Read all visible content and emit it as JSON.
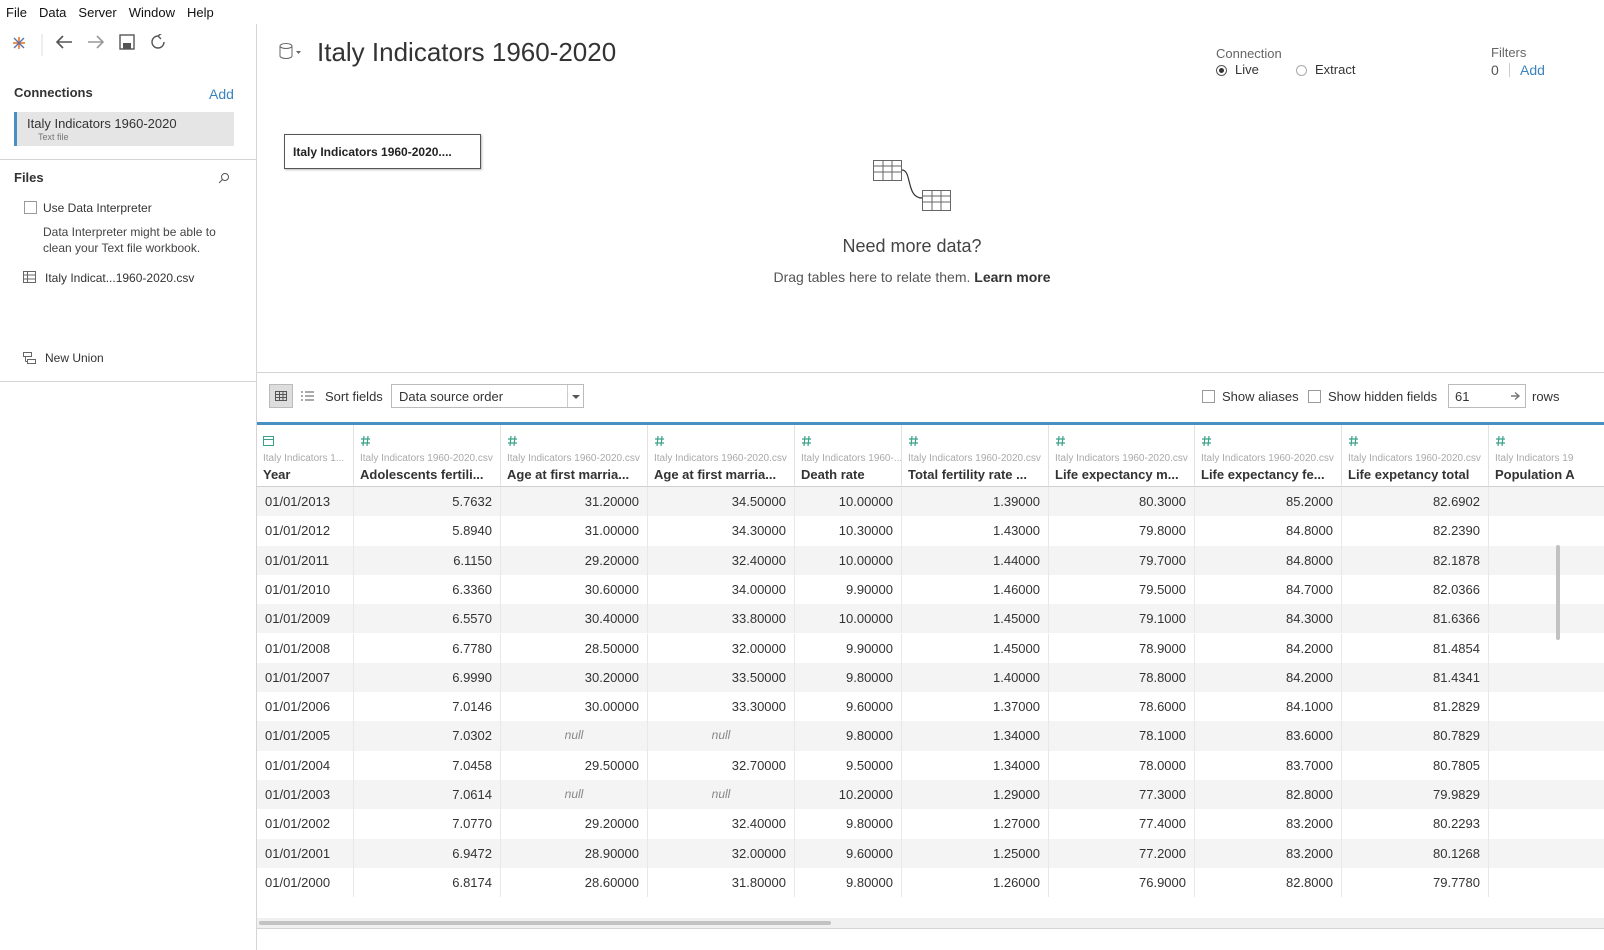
{
  "menu": [
    "File",
    "Data",
    "Server",
    "Window",
    "Help"
  ],
  "connections": {
    "title": "Connections",
    "add": "Add",
    "items": [
      {
        "name": "Italy Indicators 1960-2020",
        "type": "Text file"
      }
    ]
  },
  "files": {
    "title": "Files",
    "interpreter_label": "Use Data Interpreter",
    "interpreter_note": "Data Interpreter might be able to clean your Text file workbook.",
    "tables": [
      "Italy Indicat...1960-2020.csv"
    ],
    "new_union": "New Union"
  },
  "header": {
    "title": "Italy Indicators 1960-2020",
    "connection_label": "Connection",
    "live": "Live",
    "extract": "Extract",
    "filters_label": "Filters",
    "filters_count": "0",
    "filters_add": "Add"
  },
  "canvas": {
    "table": "Italy Indicators 1960-2020....",
    "prompt": "Need more data?",
    "hint": "Drag tables here to relate them.",
    "link": "Learn more"
  },
  "grid_toolbar": {
    "sort_label": "Sort fields",
    "sort_value": "Data source order",
    "show_aliases": "Show aliases",
    "show_hidden": "Show hidden fields",
    "rows_value": "61",
    "rows_label": "rows"
  },
  "table": {
    "columns": [
      {
        "kind": "date",
        "source": "Italy Indicators 1...",
        "name": "Year"
      },
      {
        "kind": "number",
        "source": "Italy Indicators 1960-2020.csv",
        "name": "Adolescents fertili..."
      },
      {
        "kind": "number",
        "source": "Italy Indicators 1960-2020.csv",
        "name": "Age at first marria..."
      },
      {
        "kind": "number",
        "source": "Italy Indicators 1960-2020.csv",
        "name": "Age at first marria..."
      },
      {
        "kind": "number",
        "source": "Italy Indicators 1960-...",
        "name": "Death rate"
      },
      {
        "kind": "number",
        "source": "Italy Indicators 1960-2020.csv",
        "name": "Total fertility rate ..."
      },
      {
        "kind": "number",
        "source": "Italy Indicators 1960-2020.csv",
        "name": "Life expectancy m..."
      },
      {
        "kind": "number",
        "source": "Italy Indicators 1960-2020.csv",
        "name": "Life expectancy fe..."
      },
      {
        "kind": "number",
        "source": "Italy Indicators 1960-2020.csv",
        "name": "Life expetancy total"
      },
      {
        "kind": "number",
        "source": "Italy Indicators 19",
        "name": "Population A"
      }
    ],
    "rows": [
      [
        "01/01/2013",
        "5.7632",
        "31.20000",
        "34.50000",
        "10.00000",
        "1.39000",
        "80.3000",
        "85.2000",
        "82.6902"
      ],
      [
        "01/01/2012",
        "5.8940",
        "31.00000",
        "34.30000",
        "10.30000",
        "1.43000",
        "79.8000",
        "84.8000",
        "82.2390"
      ],
      [
        "01/01/2011",
        "6.1150",
        "29.20000",
        "32.40000",
        "10.00000",
        "1.44000",
        "79.7000",
        "84.8000",
        "82.1878"
      ],
      [
        "01/01/2010",
        "6.3360",
        "30.60000",
        "34.00000",
        "9.90000",
        "1.46000",
        "79.5000",
        "84.7000",
        "82.0366"
      ],
      [
        "01/01/2009",
        "6.5570",
        "30.40000",
        "33.80000",
        "10.00000",
        "1.45000",
        "79.1000",
        "84.3000",
        "81.6366"
      ],
      [
        "01/01/2008",
        "6.7780",
        "28.50000",
        "32.00000",
        "9.90000",
        "1.45000",
        "78.9000",
        "84.2000",
        "81.4854"
      ],
      [
        "01/01/2007",
        "6.9990",
        "30.20000",
        "33.50000",
        "9.80000",
        "1.40000",
        "78.8000",
        "84.2000",
        "81.4341"
      ],
      [
        "01/01/2006",
        "7.0146",
        "30.00000",
        "33.30000",
        "9.60000",
        "1.37000",
        "78.6000",
        "84.1000",
        "81.2829"
      ],
      [
        "01/01/2005",
        "7.0302",
        "null",
        "null",
        "9.80000",
        "1.34000",
        "78.1000",
        "83.6000",
        "80.7829"
      ],
      [
        "01/01/2004",
        "7.0458",
        "29.50000",
        "32.70000",
        "9.50000",
        "1.34000",
        "78.0000",
        "83.7000",
        "80.7805"
      ],
      [
        "01/01/2003",
        "7.0614",
        "null",
        "null",
        "10.20000",
        "1.29000",
        "77.3000",
        "82.8000",
        "79.9829"
      ],
      [
        "01/01/2002",
        "7.0770",
        "29.20000",
        "32.40000",
        "9.80000",
        "1.27000",
        "77.4000",
        "83.2000",
        "80.2293"
      ],
      [
        "01/01/2001",
        "6.9472",
        "28.90000",
        "32.00000",
        "9.60000",
        "1.25000",
        "77.2000",
        "83.2000",
        "80.1268"
      ],
      [
        "01/01/2000",
        "6.8174",
        "28.60000",
        "31.80000",
        "9.80000",
        "1.26000",
        "76.9000",
        "82.8000",
        "79.7780"
      ]
    ]
  }
}
